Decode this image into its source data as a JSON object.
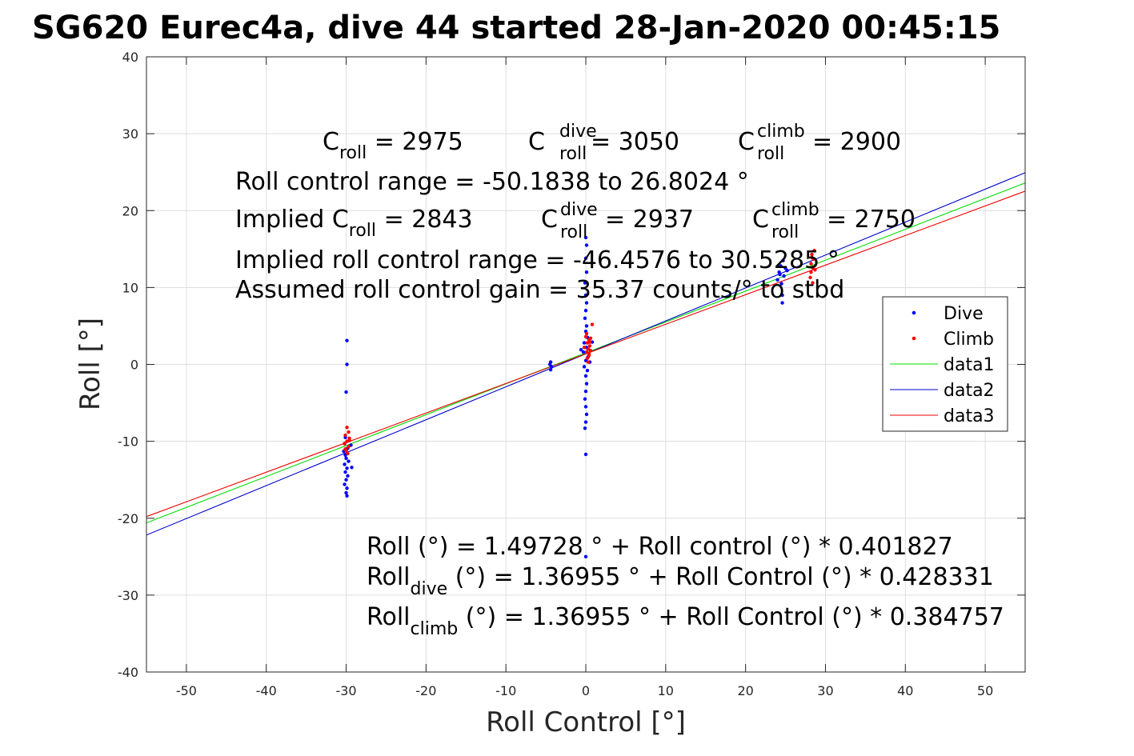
{
  "chart_data": {
    "type": "scatter",
    "title": "SG620 Eurec4a, dive 44 started 28-Jan-2020 00:45:15",
    "xlabel": "Roll Control [°]",
    "ylabel": "Roll [°]",
    "xlim": [
      -55,
      55
    ],
    "ylim": [
      -40,
      40
    ],
    "xticks": [
      -50,
      -40,
      -30,
      -20,
      -10,
      0,
      10,
      20,
      30,
      40,
      50
    ],
    "yticks": [
      -40,
      -30,
      -20,
      -10,
      0,
      10,
      20,
      30,
      40
    ],
    "grid": true,
    "legend_position": "right",
    "legend": [
      {
        "label": "Dive",
        "kind": "marker",
        "color": "#0000ff"
      },
      {
        "label": "Climb",
        "kind": "marker",
        "color": "#ff0000"
      },
      {
        "label": "data1",
        "kind": "line",
        "color": "#00dd00"
      },
      {
        "label": "data2",
        "kind": "line",
        "color": "#0000cc"
      },
      {
        "label": "data3",
        "kind": "line",
        "color": "#ee0000"
      }
    ],
    "lines": [
      {
        "name": "data1",
        "color": "#00dd00",
        "intercept": 1.49728,
        "slope": 0.401827
      },
      {
        "name": "data2",
        "color": "#0000cc",
        "intercept": 1.36955,
        "slope": 0.428331
      },
      {
        "name": "data3",
        "color": "#ee0000",
        "intercept": 1.36955,
        "slope": 0.384757
      }
    ],
    "series": [
      {
        "name": "Dive",
        "color": "#0000ff",
        "points": [
          [
            -29.9,
            3.1
          ],
          [
            -29.9,
            0.0
          ],
          [
            -30.0,
            -3.6
          ],
          [
            -30.1,
            -9.5
          ],
          [
            -30.2,
            -10.3
          ],
          [
            -29.8,
            -10.9
          ],
          [
            -30.3,
            -11.3
          ],
          [
            -30.1,
            -11.8
          ],
          [
            -30.0,
            -12.2
          ],
          [
            -29.7,
            -12.6
          ],
          [
            -30.2,
            -13.0
          ],
          [
            -29.9,
            -13.5
          ],
          [
            -30.1,
            -14.0
          ],
          [
            -29.8,
            -14.5
          ],
          [
            -30.0,
            -15.0
          ],
          [
            -30.2,
            -15.6
          ],
          [
            -29.9,
            -16.1
          ],
          [
            -30.0,
            -16.7
          ],
          [
            -29.9,
            -17.1
          ],
          [
            -29.3,
            -13.4
          ],
          [
            -29.4,
            -10.5
          ],
          [
            -4.4,
            0.3
          ],
          [
            -4.5,
            0.0
          ],
          [
            -4.3,
            -0.3
          ],
          [
            -4.4,
            -0.7
          ],
          [
            0.0,
            16.5
          ],
          [
            0.1,
            15.5
          ],
          [
            0.0,
            13.8
          ],
          [
            0.1,
            12.0
          ],
          [
            -0.1,
            10.6
          ],
          [
            0.0,
            9.0
          ],
          [
            0.1,
            8.0
          ],
          [
            0.0,
            7.0
          ],
          [
            -0.1,
            6.0
          ],
          [
            0.1,
            5.0
          ],
          [
            0.0,
            4.3
          ],
          [
            0.2,
            3.5
          ],
          [
            -0.2,
            2.8
          ],
          [
            0.1,
            2.2
          ],
          [
            -0.3,
            1.6
          ],
          [
            0.3,
            1.0
          ],
          [
            0.0,
            0.5
          ],
          [
            -0.2,
            -0.3
          ],
          [
            0.2,
            -0.8
          ],
          [
            0.0,
            -1.5
          ],
          [
            0.1,
            -2.5
          ],
          [
            0.0,
            -3.5
          ],
          [
            -0.1,
            -4.5
          ],
          [
            0.0,
            -5.5
          ],
          [
            0.1,
            -6.5
          ],
          [
            0.0,
            -7.5
          ],
          [
            -0.1,
            -8.3
          ],
          [
            0.0,
            -11.7
          ],
          [
            0.0,
            -25.0
          ],
          [
            0.8,
            2.9
          ],
          [
            -0.6,
            1.9
          ],
          [
            0.5,
            0.3
          ],
          [
            24.0,
            11.0
          ],
          [
            24.2,
            12.0
          ],
          [
            24.4,
            12.8
          ],
          [
            24.5,
            10.5
          ],
          [
            24.6,
            9.0
          ],
          [
            24.6,
            8.0
          ],
          [
            24.8,
            11.5
          ],
          [
            25.0,
            12.5
          ],
          [
            24.3,
            11.7
          ],
          [
            24.7,
            13.5
          ],
          [
            25.2,
            12.2
          ]
        ]
      },
      {
        "name": "Climb",
        "color": "#ff0000",
        "points": [
          [
            -29.9,
            -8.2
          ],
          [
            -29.7,
            -8.8
          ],
          [
            -30.1,
            -9.2
          ],
          [
            -29.6,
            -9.6
          ],
          [
            -29.9,
            -10.0
          ],
          [
            -30.2,
            -10.3
          ],
          [
            -29.7,
            -10.7
          ],
          [
            -30.0,
            -11.2
          ],
          [
            -29.8,
            -11.6
          ],
          [
            -29.6,
            -9.9
          ],
          [
            -30.1,
            -11.0
          ],
          [
            0.2,
            0.8
          ],
          [
            0.4,
            1.2
          ],
          [
            0.1,
            1.6
          ],
          [
            0.3,
            2.0
          ],
          [
            0.5,
            2.4
          ],
          [
            0.2,
            2.8
          ],
          [
            0.4,
            3.2
          ],
          [
            0.0,
            3.6
          ],
          [
            0.6,
            1.8
          ],
          [
            -0.2,
            2.2
          ],
          [
            0.3,
            0.3
          ],
          [
            0.5,
            2.9
          ],
          [
            0.1,
            4.0
          ],
          [
            0.8,
            5.2
          ],
          [
            0.4,
            1.4
          ],
          [
            0.6,
            3.4
          ],
          [
            28.2,
            12.0
          ],
          [
            28.4,
            12.6
          ],
          [
            28.2,
            13.1
          ],
          [
            28.5,
            13.7
          ],
          [
            28.3,
            14.3
          ],
          [
            28.6,
            14.8
          ],
          [
            28.1,
            11.3
          ],
          [
            28.4,
            10.6
          ],
          [
            28.7,
            12.3
          ],
          [
            28.3,
            13.9
          ]
        ]
      }
    ]
  },
  "annotations": {
    "line1": {
      "p1": "C",
      "p1_sub": "roll",
      "p1_val": " = 2975",
      "p2": "C",
      "p2_sup": "dive",
      "p2_sub": "roll",
      "p2_val": " = 3050",
      "p3": "C",
      "p3_sup": "climb",
      "p3_sub": "roll",
      "p3_val": " = 2900"
    },
    "line2": "Roll control range = -50.1838 to 26.8024 °",
    "line3": {
      "p1": "Implied C",
      "p1_sub": "roll",
      "p1_val": " = 2843",
      "p2": "C",
      "p2_sup": "dive",
      "p2_sub": "roll",
      "p2_val": " = 2937",
      "p3": "C",
      "p3_sup": "climb",
      "p3_sub": "roll",
      "p3_val": " = 2750"
    },
    "line4": "Implied roll control range = -46.4576 to 30.5285 °",
    "line5": "Assumed roll control gain = 35.37 counts/° to stbd",
    "fit1": "Roll (°) = 1.49728 ° + Roll control (°) * 0.401827",
    "fit2": {
      "p1": "Roll",
      "p1_sub": "dive",
      "rest": " (°) = 1.36955 ° + Roll Control (°) * 0.428331"
    },
    "fit3": {
      "p1": "Roll",
      "p1_sub": "climb",
      "rest": " (°) = 1.36955 ° + Roll Control (°) * 0.384757"
    }
  }
}
